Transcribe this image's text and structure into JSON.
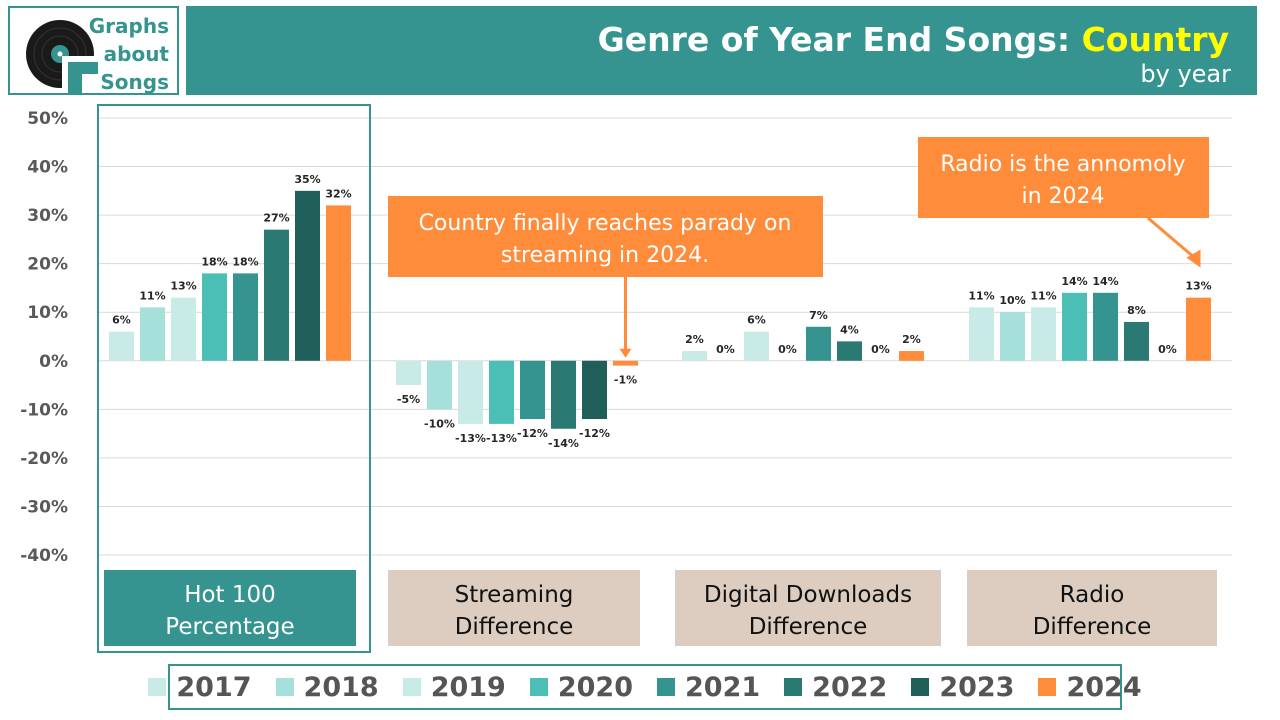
{
  "header": {
    "logo_lines": [
      "Graphs",
      "about",
      "Songs"
    ],
    "title_prefix": "Genre of Year End Songs: ",
    "title_highlight": "Country",
    "subtitle": "by year"
  },
  "colors": {
    "teal": "#359490",
    "highlight_yellow": "#ffff00",
    "annotation_orange": "#ff8c3a",
    "category_tan": "#dccdc0",
    "series": [
      "#c8ebe7",
      "#a6e0da",
      "#c8ebe7",
      "#4bbfb5",
      "#359490",
      "#2a7a73",
      "#1f5e59",
      "#ff8c3a"
    ]
  },
  "legend": {
    "items": [
      "2017",
      "2018",
      "2019",
      "2020",
      "2021",
      "2022",
      "2023",
      "2024"
    ]
  },
  "annotations": {
    "streaming_note": [
      "Country finally reaches parady on",
      "streaming in 2024."
    ],
    "radio_note": [
      "Radio is the annomoly",
      "in 2024"
    ]
  },
  "chart_data": {
    "type": "bar",
    "categories": [
      [
        "Hot 100",
        "Percentage"
      ],
      [
        "Streaming",
        "Difference"
      ],
      [
        "Digital Downloads",
        "Difference"
      ],
      [
        "Radio",
        "Difference"
      ]
    ],
    "series": [
      {
        "name": "2017",
        "values": [
          6,
          -5,
          2,
          11
        ],
        "labels": [
          "6%",
          "-5%",
          "2%",
          "11%"
        ]
      },
      {
        "name": "2018",
        "values": [
          11,
          -10,
          0,
          10
        ],
        "labels": [
          "11%",
          "-10%",
          "0%",
          "10%"
        ]
      },
      {
        "name": "2019",
        "values": [
          13,
          -13,
          6,
          11
        ],
        "labels": [
          "13%",
          "-13%",
          "6%",
          "11%"
        ]
      },
      {
        "name": "2020",
        "values": [
          18,
          -13,
          0,
          14
        ],
        "labels": [
          "18%",
          "-13%",
          "0%",
          "14%"
        ]
      },
      {
        "name": "2021",
        "values": [
          18,
          -12,
          7,
          14
        ],
        "labels": [
          "18%",
          "-12%",
          "7%",
          "14%"
        ]
      },
      {
        "name": "2022",
        "values": [
          27,
          -14,
          4,
          8
        ],
        "labels": [
          "27%",
          "-14%",
          "4%",
          "8%"
        ]
      },
      {
        "name": "2023",
        "values": [
          35,
          -12,
          0,
          0
        ],
        "labels": [
          "35%",
          "-12%",
          "0%",
          "0%"
        ]
      },
      {
        "name": "2024",
        "values": [
          32,
          -1,
          2,
          13
        ],
        "labels": [
          "32%",
          "-1%",
          "2%",
          "13%"
        ]
      }
    ],
    "yticks": [
      "50%",
      "40%",
      "30%",
      "20%",
      "10%",
      "0%",
      "-10%",
      "-20%",
      "-30%",
      "-40%"
    ],
    "ylim": [
      -40,
      50
    ],
    "grid": true,
    "legend_position": "bottom"
  }
}
